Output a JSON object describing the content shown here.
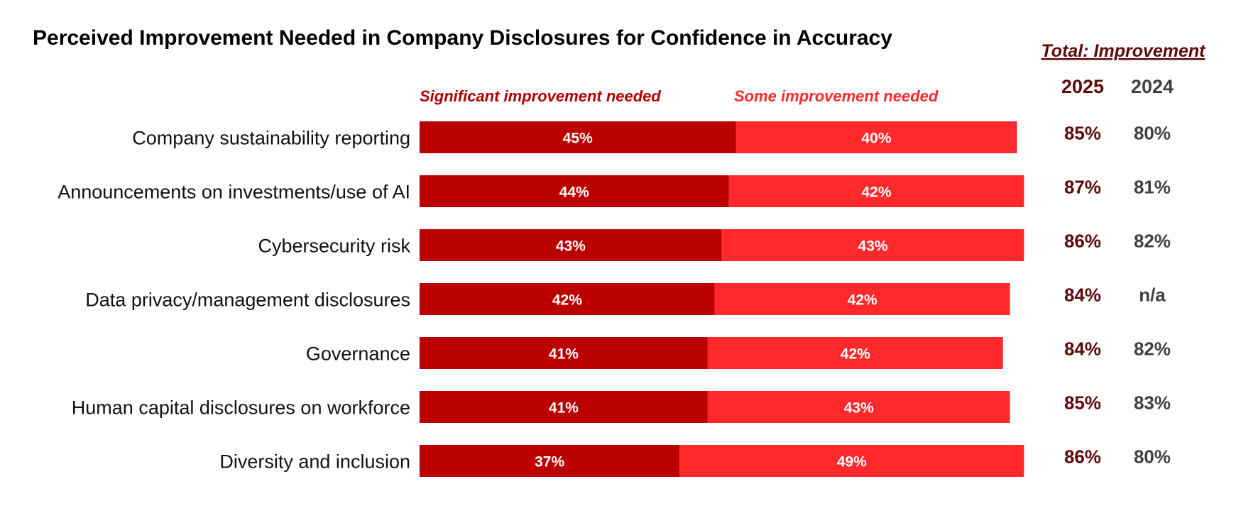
{
  "colors": {
    "significant": "#BB0000",
    "some": "#FF282B",
    "total_2025": "#5E0A0A",
    "total_2024": "#404040",
    "legend_significant": "#B30000",
    "legend_some": "#FF282B"
  },
  "chart_data": {
    "type": "bar",
    "orientation": "horizontal",
    "stacked": true,
    "title": "Perceived Improvement Needed in Company Disclosures for Confidence in Accuracy",
    "categories": [
      "Company sustainability reporting",
      "Announcements on investments/use of AI",
      "Cybersecurity risk",
      "Data privacy/management disclosures",
      "Governance",
      "Human capital disclosures on workforce",
      "Diversity and inclusion"
    ],
    "series": [
      {
        "name": "Significant improvement needed",
        "values": [
          45,
          44,
          43,
          42,
          41,
          41,
          37
        ],
        "labels": [
          "45%",
          "44%",
          "43%",
          "42%",
          "41%",
          "41%",
          "37%"
        ]
      },
      {
        "name": "Some improvement needed",
        "values": [
          40,
          42,
          43,
          42,
          42,
          43,
          49
        ],
        "labels": [
          "40%",
          "42%",
          "43%",
          "42%",
          "42%",
          "43%",
          "49%"
        ]
      }
    ],
    "xlim": [
      0,
      100
    ],
    "grid": false,
    "legend": "top",
    "totals": {
      "header": "Total: Improvement",
      "years": [
        "2025",
        "2024"
      ],
      "values_2025": [
        "85%",
        "87%",
        "86%",
        "84%",
        "84%",
        "85%",
        "86%"
      ],
      "values_2024": [
        "80%",
        "81%",
        "82%",
        "n/a",
        "82%",
        "83%",
        "80%"
      ]
    }
  }
}
